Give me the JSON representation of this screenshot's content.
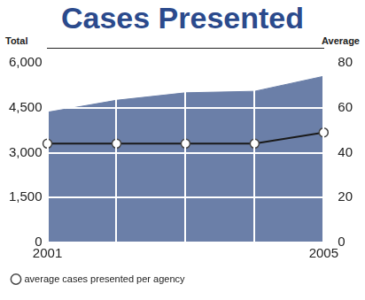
{
  "chart_data": {
    "type": "line",
    "title": "Cases Presented",
    "ylabel": "Total",
    "y2label": "Average",
    "categories": [
      "2001",
      null,
      null,
      null,
      "2005"
    ],
    "series": [
      {
        "type": "area",
        "color": "#6b7fa8",
        "values": [
          4350,
          4750,
          5000,
          5050,
          5550
        ]
      },
      {
        "name": "average cases presented per agency",
        "type": "line",
        "color": "#1a1a1a",
        "marker": "circle",
        "axis": "y2",
        "values": [
          44,
          44,
          44,
          44,
          49
        ]
      }
    ],
    "ylim": [
      0,
      6000
    ],
    "yticks": [
      0,
      {
        "value": 1500,
        "label": "1,500"
      },
      {
        "value": 3000,
        "label": "3,000"
      },
      {
        "value": 4500,
        "label": "4,500"
      },
      {
        "value": 6000,
        "label": "6,000"
      }
    ],
    "y2lim": [
      0,
      80
    ],
    "y2ticks": [
      0,
      20,
      40,
      60,
      80
    ],
    "grid": true,
    "legend": "bottom"
  }
}
